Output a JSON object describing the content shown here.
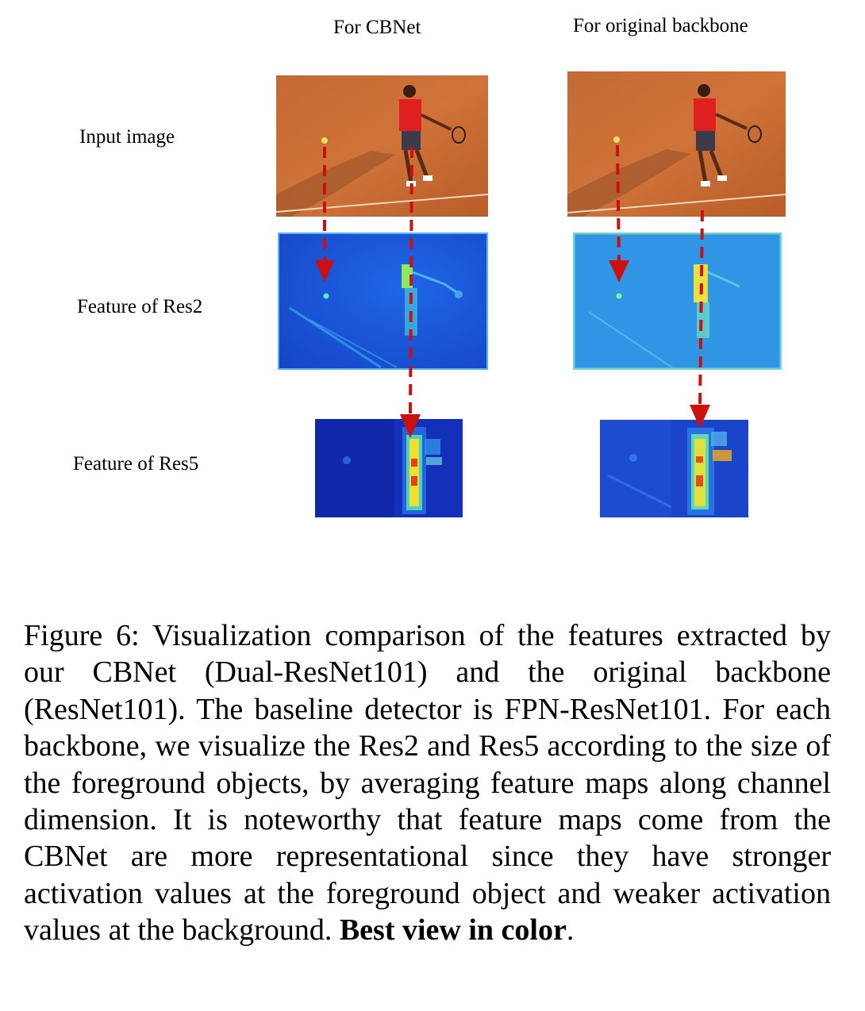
{
  "figure": {
    "columns": [
      "For CBNet",
      "For original backbone"
    ],
    "rows": [
      "Input image",
      "Feature of  Res2",
      "Feature of Res5"
    ],
    "caption_text": "Figure 6: Visualization comparison of the features extracted by our CBNet (Dual-ResNet101) and the original backbone (ResNet101). The baseline detector is FPN-ResNet101. For each backbone, we visualize the Res2 and Res5 according to the size of the foreground objects, by averaging feature maps along channel dimension. It is noteworthy that feature maps come from the CBNet are more representational since they have stronger activation values at the foreground object and weaker activation values at the background. ",
    "caption_bold": "Best view in color",
    "caption_end": "."
  },
  "colors": {
    "clay": "#c8682e",
    "feature_blue": "#1a4fd8",
    "res5_blue": "#1530b8",
    "activation_yellow": "#f2e830",
    "arrow_red": "#cc1010"
  }
}
